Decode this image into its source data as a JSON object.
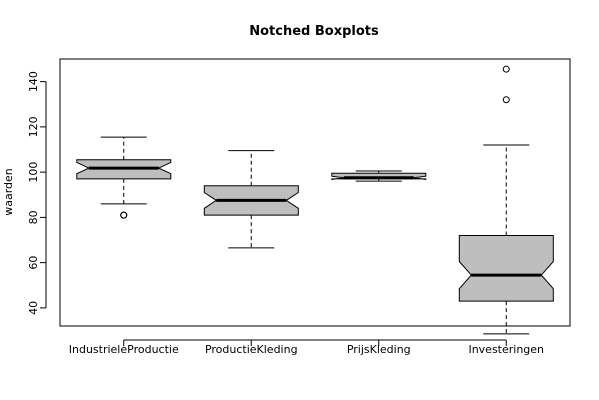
{
  "chart_data": {
    "type": "boxplot",
    "title": "Notched Boxplots",
    "xlabel": "",
    "ylabel": "waarden",
    "ylim": [
      32,
      150
    ],
    "yticks": [
      40,
      60,
      80,
      100,
      120,
      140
    ],
    "grid": false,
    "legend": "none",
    "colors": {
      "box_fill": "#bebebe",
      "stroke": "#000000"
    },
    "categories": [
      "IndustrieleProductie",
      "ProductieKleding",
      "PrijsKleding",
      "Investeringen"
    ],
    "boxes": [
      {
        "name": "IndustrieleProductie",
        "whisker_low": 86,
        "q1": 97,
        "median": 101.8,
        "q3": 105.5,
        "whisker_high": 115.5,
        "notch_low": 99.3,
        "notch_high": 104.3,
        "outliers": [
          81,
          81
        ]
      },
      {
        "name": "ProductieKleding",
        "whisker_low": 66.5,
        "q1": 81,
        "median": 87.5,
        "q3": 94,
        "whisker_high": 109.5,
        "notch_low": 84,
        "notch_high": 91,
        "outliers": []
      },
      {
        "name": "PrijsKleding",
        "whisker_low": 96,
        "q1": 97,
        "median": 97.5,
        "q3": 99.5,
        "whisker_high": 100.5,
        "notch_low": 96.8,
        "notch_high": 98.2,
        "outliers": []
      },
      {
        "name": "Investeringen",
        "whisker_low": 28.5,
        "q1": 43,
        "median": 54.5,
        "q3": 72,
        "whisker_high": 112,
        "notch_low": 48.5,
        "notch_high": 60.5,
        "outliers": [
          132,
          145.5
        ]
      }
    ]
  }
}
